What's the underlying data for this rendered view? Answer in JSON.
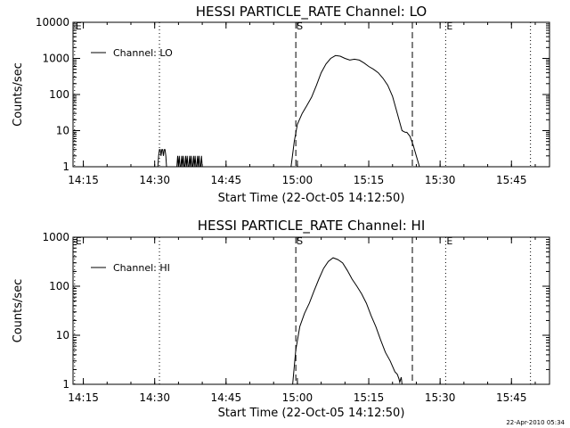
{
  "chart_data": [
    {
      "type": "line",
      "title": "HESSI PARTICLE_RATE Channel: LO",
      "xlabel": "Start Time (22-Oct-05 14:12:50)",
      "ylabel": "Counts/sec",
      "yscale": "log",
      "ylim": [
        1,
        10000
      ],
      "xlim": [
        "14:12:50",
        "15:53:00"
      ],
      "xticks": [
        "14:15",
        "14:30",
        "14:45",
        "15:00",
        "15:15",
        "15:30",
        "15:45"
      ],
      "yticks": [
        "1",
        "10",
        "100",
        "1000",
        "10000"
      ],
      "legend": {
        "position": "top-left",
        "entries": [
          "Channel: LO"
        ]
      },
      "markers": [
        {
          "time": "14:13:10",
          "style": "dotted",
          "label": "E"
        },
        {
          "time": "14:31:00",
          "style": "dotted",
          "label": ""
        },
        {
          "time": "14:59:40",
          "style": "dashed",
          "label": "S"
        },
        {
          "time": "15:24:10",
          "style": "dashed",
          "label": ""
        },
        {
          "time": "15:31:10",
          "style": "dotted",
          "label": "E"
        },
        {
          "time": "15:49:00",
          "style": "dotted",
          "label": ""
        }
      ],
      "series": [
        {
          "name": "Channel: LO",
          "x": [
            "14:30:40",
            "14:30:50",
            "14:31:00",
            "14:31:10",
            "14:31:20",
            "14:31:30",
            "14:31:40",
            "14:31:50",
            "14:32:00",
            "14:32:10",
            "14:32:20",
            "14:32:30",
            "14:32:40",
            "14:34:40",
            "14:34:50",
            "14:35:00",
            "14:35:10",
            "14:35:20",
            "14:35:30",
            "14:35:40",
            "14:35:50",
            "14:36:00",
            "14:36:10",
            "14:36:20",
            "14:36:30",
            "14:36:40",
            "14:36:50",
            "14:37:00",
            "14:37:10",
            "14:37:20",
            "14:37:30",
            "14:37:40",
            "14:37:50",
            "14:38:00",
            "14:38:10",
            "14:38:20",
            "14:38:30",
            "14:38:40",
            "14:38:50",
            "14:39:00",
            "14:39:10",
            "14:39:20",
            "14:39:30",
            "14:39:40",
            "14:39:50",
            "14:40:00",
            "14:40:10",
            "14:58:40",
            "14:59:20",
            "15:00:00",
            "15:01:00",
            "15:02:00",
            "15:03:00",
            "15:04:00",
            "15:05:00",
            "15:06:00",
            "15:07:00",
            "15:08:00",
            "15:09:00",
            "15:10:00",
            "15:11:00",
            "15:12:00",
            "15:13:00",
            "15:14:00",
            "15:15:00",
            "15:16:00",
            "15:17:00",
            "15:18:00",
            "15:19:00",
            "15:20:00",
            "15:21:00",
            "15:22:00",
            "15:22:40",
            "15:23:00",
            "15:23:40",
            "15:24:20",
            "15:25:00",
            "15:25:40"
          ],
          "y": [
            1,
            2,
            3,
            3,
            2,
            3,
            3,
            2,
            3,
            3,
            2,
            1,
            1,
            1,
            2,
            1,
            2,
            1,
            1,
            2,
            1,
            2,
            1,
            1,
            2,
            1,
            2,
            1,
            1,
            2,
            1,
            2,
            1,
            1,
            2,
            1,
            2,
            1,
            1,
            2,
            1,
            2,
            1,
            1,
            2,
            1,
            1,
            1,
            5,
            15,
            30,
            50,
            85,
            180,
            400,
            700,
            1000,
            1200,
            1150,
            1000,
            900,
            950,
            900,
            750,
            600,
            500,
            400,
            280,
            180,
            90,
            30,
            10,
            9,
            9,
            7,
            4,
            2,
            1
          ]
        }
      ]
    },
    {
      "type": "line",
      "title": "HESSI PARTICLE_RATE Channel: HI",
      "xlabel": "Start Time (22-Oct-05 14:12:50)",
      "ylabel": "Counts/sec",
      "yscale": "log",
      "ylim": [
        1,
        1000
      ],
      "xlim": [
        "14:12:50",
        "15:53:00"
      ],
      "xticks": [
        "14:15",
        "14:30",
        "14:45",
        "15:00",
        "15:15",
        "15:30",
        "15:45"
      ],
      "yticks": [
        "1",
        "10",
        "100",
        "1000"
      ],
      "legend": {
        "position": "top-left",
        "entries": [
          "Channel: HI"
        ]
      },
      "markers": [
        {
          "time": "14:13:10",
          "style": "dotted",
          "label": "E"
        },
        {
          "time": "14:31:00",
          "style": "dotted",
          "label": ""
        },
        {
          "time": "14:59:40",
          "style": "dashed",
          "label": "S"
        },
        {
          "time": "15:24:10",
          "style": "dashed",
          "label": ""
        },
        {
          "time": "15:31:10",
          "style": "dotted",
          "label": "E"
        },
        {
          "time": "15:49:00",
          "style": "dotted",
          "label": ""
        }
      ],
      "series": [
        {
          "name": "Channel: HI",
          "x": [
            "14:59:00",
            "14:59:40",
            "15:00:30",
            "15:01:30",
            "15:02:30",
            "15:03:30",
            "15:04:30",
            "15:05:30",
            "15:06:30",
            "15:07:30",
            "15:08:30",
            "15:09:30",
            "15:10:30",
            "15:11:30",
            "15:12:30",
            "15:13:30",
            "15:14:30",
            "15:15:30",
            "15:16:30",
            "15:17:30",
            "15:18:30",
            "15:19:30",
            "15:20:30",
            "15:21:00",
            "15:21:20",
            "15:21:30",
            "15:21:50",
            "15:22:00"
          ],
          "y": [
            1,
            5,
            15,
            28,
            45,
            80,
            140,
            230,
            320,
            380,
            350,
            300,
            210,
            140,
            100,
            70,
            45,
            25,
            15,
            8,
            4.5,
            3,
            1.8,
            1.6,
            1.3,
            1.1,
            1.4,
            1
          ]
        }
      ]
    }
  ],
  "footer": {
    "timestamp": "22-Apr-2010 05:34"
  }
}
